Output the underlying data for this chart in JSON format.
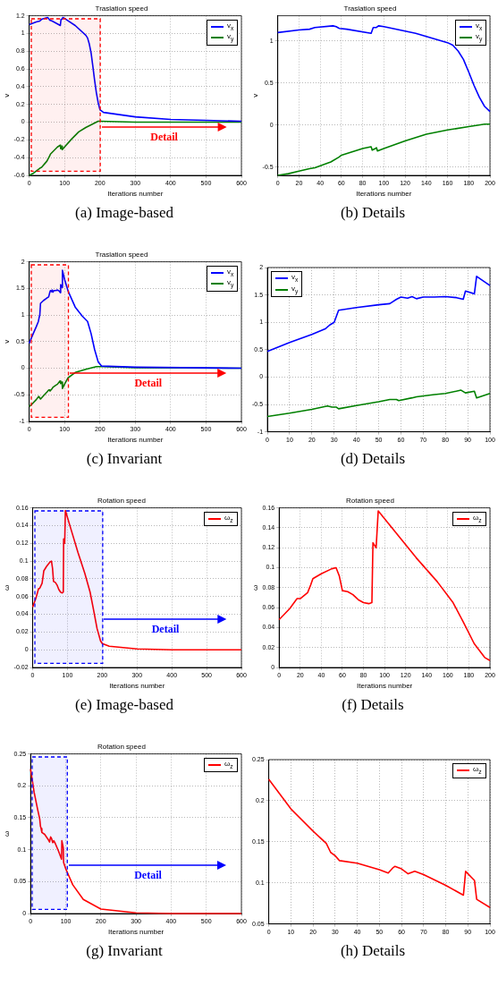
{
  "chart_data": [
    {
      "type": "line",
      "title": "Traslation speed",
      "xlabel": "Iterations number",
      "ylabel": "v",
      "xlim": [
        0,
        600
      ],
      "xticks": [
        0,
        100,
        200,
        300,
        400,
        500,
        600
      ],
      "ylim": [
        -0.6,
        1.2
      ],
      "yticks": [
        -0.6,
        -0.4,
        -0.2,
        0,
        0.2,
        0.4,
        0.6,
        0.8,
        1,
        1.2
      ],
      "grid": true,
      "legend": "top right",
      "marker": "none",
      "series": [
        {
          "name": "v$_{x}$",
          "color": "#0000ff",
          "x": [
            0,
            20,
            30,
            35,
            52,
            55,
            58,
            65,
            88,
            90,
            93,
            95,
            100,
            130,
            160,
            165,
            170,
            175,
            180,
            185,
            190,
            195,
            200,
            210,
            300,
            400,
            500,
            600
          ],
          "values": [
            1.1,
            1.13,
            1.14,
            1.16,
            1.18,
            1.17,
            1.15,
            1.14,
            1.09,
            1.16,
            1.16,
            1.18,
            1.17,
            1.09,
            0.98,
            0.95,
            0.88,
            0.78,
            0.63,
            0.47,
            0.33,
            0.22,
            0.14,
            0.11,
            0.06,
            0.03,
            0.02,
            0.01
          ]
        },
        {
          "name": "v$_{y}$",
          "color": "#008000",
          "x": [
            0,
            10,
            20,
            30,
            35,
            50,
            58,
            60,
            70,
            80,
            88,
            89,
            92,
            93,
            94,
            100,
            120,
            140,
            160,
            180,
            195,
            200,
            300,
            600
          ],
          "values": [
            -0.6,
            -0.58,
            -0.55,
            -0.52,
            -0.51,
            -0.44,
            -0.38,
            -0.36,
            -0.32,
            -0.28,
            -0.26,
            -0.3,
            -0.28,
            -0.27,
            -0.31,
            -0.28,
            -0.19,
            -0.11,
            -0.06,
            -0.02,
            0.01,
            0.01,
            0,
            0
          ]
        }
      ],
      "bands": [
        {
          "axis": "x",
          "from": 5,
          "to": 200,
          "color": "#ff0000",
          "label": "Detail"
        }
      ],
      "annotations": [
        "(a) Image-based"
      ]
    },
    {
      "type": "line",
      "title": "Traslation speed",
      "xlabel": "Iterations number",
      "ylabel": "v",
      "xlim": [
        0,
        200
      ],
      "xticks": [
        0,
        20,
        40,
        60,
        80,
        100,
        120,
        140,
        160,
        180,
        200
      ],
      "ylim": [
        -0.6,
        1.3
      ],
      "yticks": [
        -0.5,
        0,
        0.5,
        1
      ],
      "grid": true,
      "legend": "top right",
      "marker": "none",
      "series": [
        {
          "name": "v$_{x}$",
          "color": "#0000ff",
          "x": [
            0,
            20,
            30,
            35,
            52,
            55,
            58,
            65,
            88,
            90,
            93,
            95,
            100,
            130,
            160,
            165,
            170,
            175,
            180,
            185,
            190,
            195,
            200
          ],
          "values": [
            1.1,
            1.13,
            1.14,
            1.16,
            1.18,
            1.17,
            1.15,
            1.14,
            1.09,
            1.16,
            1.16,
            1.18,
            1.17,
            1.09,
            0.98,
            0.95,
            0.88,
            0.78,
            0.63,
            0.47,
            0.33,
            0.22,
            0.16
          ]
        },
        {
          "name": "v$_{y}$",
          "color": "#008000",
          "x": [
            0,
            10,
            20,
            30,
            35,
            50,
            58,
            60,
            70,
            80,
            88,
            89,
            92,
            93,
            94,
            100,
            120,
            140,
            160,
            180,
            195,
            200
          ],
          "values": [
            -0.6,
            -0.58,
            -0.55,
            -0.52,
            -0.51,
            -0.44,
            -0.38,
            -0.36,
            -0.32,
            -0.28,
            -0.26,
            -0.3,
            -0.28,
            -0.27,
            -0.31,
            -0.28,
            -0.19,
            -0.11,
            -0.06,
            -0.02,
            0.01,
            0.01
          ]
        }
      ],
      "annotations": [
        "(b) Details"
      ]
    },
    {
      "type": "line",
      "title": "Traslation speed",
      "xlabel": "Iterations number",
      "ylabel": "v",
      "xlim": [
        0,
        600
      ],
      "xticks": [
        0,
        100,
        200,
        300,
        400,
        500,
        600
      ],
      "ylim": [
        -1,
        2
      ],
      "yticks": [
        -1,
        -0.5,
        0,
        0.5,
        1,
        1.5,
        2
      ],
      "grid": true,
      "legend": "top right",
      "marker": "none",
      "series": [
        {
          "name": "v$_{x}$",
          "color": "#0000ff",
          "x": [
            0,
            10,
            20,
            26,
            28,
            30,
            32,
            40,
            50,
            55,
            58,
            60,
            63,
            65,
            67,
            70,
            75,
            80,
            85,
            88,
            89,
            93,
            94,
            100,
            110,
            130,
            150,
            165,
            175,
            185,
            195,
            205,
            300,
            600
          ],
          "values": [
            0.47,
            0.63,
            0.78,
            0.88,
            0.95,
            1.0,
            1.22,
            1.27,
            1.32,
            1.34,
            1.42,
            1.46,
            1.44,
            1.47,
            1.43,
            1.46,
            1.46,
            1.47,
            1.45,
            1.42,
            1.57,
            1.52,
            1.84,
            1.67,
            1.45,
            1.15,
            0.98,
            0.88,
            0.65,
            0.35,
            0.12,
            0.04,
            0.02,
            0
          ]
        },
        {
          "name": "v$_{y}$",
          "color": "#008000",
          "x": [
            0,
            10,
            20,
            27,
            29,
            31,
            32,
            40,
            50,
            55,
            58,
            59,
            65,
            67,
            75,
            80,
            87,
            89,
            93,
            94,
            100,
            110,
            130,
            160,
            190,
            210,
            300,
            600
          ],
          "values": [
            -0.72,
            -0.66,
            -0.59,
            -0.53,
            -0.55,
            -0.55,
            -0.58,
            -0.52,
            -0.45,
            -0.41,
            -0.41,
            -0.43,
            -0.38,
            -0.36,
            -0.32,
            -0.3,
            -0.24,
            -0.29,
            -0.26,
            -0.38,
            -0.3,
            -0.18,
            -0.08,
            -0.02,
            0.03,
            0.03,
            0.01,
            0
          ]
        }
      ],
      "bands": [
        {
          "axis": "x",
          "from": 5,
          "to": 110,
          "color": "#ff0000",
          "label": "Detail"
        }
      ],
      "annotations": [
        "(c) Invariant"
      ]
    },
    {
      "type": "line",
      "xlim": [
        0,
        100
      ],
      "xticks": [
        0,
        10,
        20,
        30,
        40,
        50,
        60,
        70,
        80,
        90,
        100
      ],
      "ylim": [
        -1,
        2
      ],
      "yticks": [
        -1,
        -0.5,
        0,
        0.5,
        1,
        1.5,
        2
      ],
      "grid": true,
      "legend": "top left",
      "marker": "none",
      "series": [
        {
          "name": "v$_{x}$",
          "color": "#0000ff",
          "x": [
            0,
            10,
            20,
            26,
            28,
            30,
            32,
            40,
            50,
            55,
            58,
            60,
            63,
            65,
            67,
            70,
            75,
            80,
            85,
            88,
            89,
            93,
            94,
            100
          ],
          "values": [
            0.47,
            0.63,
            0.78,
            0.88,
            0.95,
            1.0,
            1.22,
            1.27,
            1.32,
            1.34,
            1.42,
            1.46,
            1.44,
            1.47,
            1.43,
            1.46,
            1.46,
            1.47,
            1.45,
            1.42,
            1.57,
            1.52,
            1.84,
            1.67
          ]
        },
        {
          "name": "v$_{y}$",
          "color": "#008000",
          "x": [
            0,
            10,
            20,
            27,
            29,
            31,
            32,
            40,
            50,
            55,
            58,
            59,
            65,
            67,
            75,
            80,
            87,
            89,
            93,
            94,
            100
          ],
          "values": [
            -0.72,
            -0.66,
            -0.59,
            -0.53,
            -0.55,
            -0.55,
            -0.58,
            -0.52,
            -0.45,
            -0.41,
            -0.41,
            -0.43,
            -0.38,
            -0.36,
            -0.32,
            -0.3,
            -0.24,
            -0.29,
            -0.26,
            -0.38,
            -0.3
          ]
        }
      ],
      "annotations": [
        "(d) Details"
      ]
    },
    {
      "type": "line",
      "title": "Rotation speed",
      "xlabel": "Iterations number",
      "ylabel": "ω",
      "xlim": [
        0,
        600
      ],
      "xticks": [
        0,
        100,
        200,
        300,
        400,
        500,
        600
      ],
      "ylim": [
        -0.02,
        0.16
      ],
      "yticks": [
        -0.02,
        0,
        0.02,
        0.04,
        0.06,
        0.08,
        0.1,
        0.12,
        0.14,
        0.16
      ],
      "grid": true,
      "legend": "top right",
      "marker": "none",
      "series": [
        {
          "name": "ω$_{z}$",
          "color": "#ff0000",
          "x": [
            0,
            10,
            17,
            20,
            27,
            30,
            32,
            40,
            50,
            54,
            57,
            60,
            65,
            70,
            75,
            80,
            85,
            88,
            89,
            92,
            94,
            110,
            130,
            150,
            165,
            175,
            185,
            195,
            200,
            220,
            300,
            400,
            600
          ],
          "values": [
            0.048,
            0.059,
            0.069,
            0.069,
            0.075,
            0.083,
            0.089,
            0.094,
            0.099,
            0.1,
            0.092,
            0.077,
            0.076,
            0.073,
            0.068,
            0.065,
            0.064,
            0.065,
            0.125,
            0.12,
            0.157,
            0.136,
            0.11,
            0.086,
            0.065,
            0.045,
            0.024,
            0.01,
            0.007,
            0.004,
            0.001,
            0,
            0
          ]
        }
      ],
      "bands": [
        {
          "axis": "x",
          "from": 5,
          "to": 200,
          "color": "#0000ff",
          "label": "Detail"
        }
      ],
      "annotations": [
        "(e) Image-based"
      ]
    },
    {
      "type": "line",
      "title": "Rotation speed",
      "xlabel": "Iterations number",
      "ylabel": "ω",
      "xlim": [
        0,
        200
      ],
      "xticks": [
        0,
        20,
        40,
        60,
        80,
        100,
        120,
        140,
        160,
        180,
        200
      ],
      "ylim": [
        0,
        0.16
      ],
      "yticks": [
        0,
        0.02,
        0.04,
        0.06,
        0.08,
        0.1,
        0.12,
        0.14,
        0.16
      ],
      "grid": true,
      "legend": "top right",
      "marker": "none",
      "series": [
        {
          "name": "ω$_{z}$",
          "color": "#ff0000",
          "x": [
            0,
            10,
            17,
            20,
            27,
            30,
            32,
            40,
            50,
            54,
            57,
            60,
            65,
            70,
            75,
            80,
            85,
            88,
            89,
            92,
            94,
            110,
            130,
            150,
            165,
            175,
            185,
            195,
            200
          ],
          "values": [
            0.048,
            0.059,
            0.069,
            0.069,
            0.075,
            0.083,
            0.089,
            0.094,
            0.099,
            0.1,
            0.092,
            0.077,
            0.076,
            0.073,
            0.068,
            0.065,
            0.064,
            0.065,
            0.125,
            0.12,
            0.157,
            0.136,
            0.11,
            0.086,
            0.065,
            0.045,
            0.024,
            0.01,
            0.007
          ]
        }
      ],
      "annotations": [
        "(f) Details"
      ]
    },
    {
      "type": "line",
      "title": "Rotation speed",
      "xlabel": "Iterations number",
      "ylabel": "ω",
      "xlim": [
        0,
        600
      ],
      "xticks": [
        0,
        100,
        200,
        300,
        400,
        500,
        600
      ],
      "ylim": [
        0,
        0.25
      ],
      "yticks": [
        0,
        0.05,
        0.1,
        0.15,
        0.2,
        0.25
      ],
      "grid": true,
      "legend": "top right",
      "marker": "none",
      "series": [
        {
          "name": "ω$_{z}$",
          "color": "#ff0000",
          "x": [
            0,
            10,
            20,
            26,
            28,
            30,
            32,
            40,
            50,
            54,
            56,
            57,
            60,
            63,
            66,
            70,
            80,
            88,
            89,
            93,
            94,
            100,
            120,
            150,
            200,
            300,
            400,
            600
          ],
          "values": [
            0.226,
            0.19,
            0.163,
            0.148,
            0.137,
            0.133,
            0.127,
            0.124,
            0.116,
            0.112,
            0.118,
            0.12,
            0.117,
            0.111,
            0.114,
            0.11,
            0.097,
            0.085,
            0.114,
            0.103,
            0.08,
            0.07,
            0.045,
            0.022,
            0.007,
            0.001,
            0,
            0
          ]
        }
      ],
      "bands": [
        {
          "axis": "x",
          "from": 5,
          "to": 105,
          "color": "#0000ff",
          "label": "Detail"
        }
      ],
      "annotations": [
        "(g) Invariant"
      ]
    },
    {
      "type": "line",
      "xlim": [
        0,
        100
      ],
      "xticks": [
        0,
        10,
        20,
        30,
        40,
        50,
        60,
        70,
        80,
        90,
        100
      ],
      "ylim": [
        0.05,
        0.25
      ],
      "yticks": [
        0.05,
        0.1,
        0.15,
        0.2,
        0.25
      ],
      "grid": true,
      "legend": "top right",
      "marker": "none",
      "series": [
        {
          "name": "ω$_{z}$",
          "color": "#ff0000",
          "x": [
            0,
            10,
            20,
            26,
            28,
            30,
            32,
            40,
            50,
            54,
            56,
            57,
            60,
            63,
            66,
            70,
            80,
            88,
            89,
            93,
            94,
            100
          ],
          "values": [
            0.226,
            0.19,
            0.163,
            0.148,
            0.137,
            0.133,
            0.127,
            0.124,
            0.116,
            0.112,
            0.118,
            0.12,
            0.117,
            0.111,
            0.114,
            0.11,
            0.097,
            0.085,
            0.114,
            0.103,
            0.08,
            0.07
          ]
        }
      ],
      "annotations": [
        "(h) Details"
      ]
    }
  ]
}
